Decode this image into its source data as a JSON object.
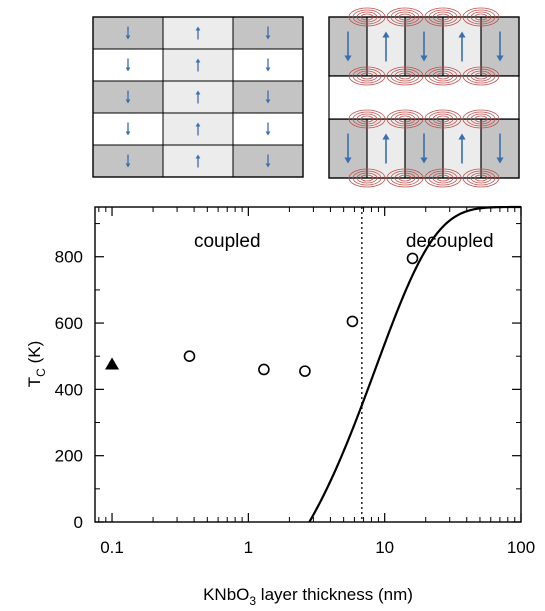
{
  "colors": {
    "dark_domain": "#c4c4c4",
    "light_domain": "#ececec",
    "white_domain": "#ffffff",
    "arrow": "#3a6fae",
    "loop": "#c0504d",
    "frame": "#000000"
  },
  "schematics": {
    "left": {
      "name": "coupled-domains-schematic",
      "rows": 5,
      "cols": 3,
      "row_shading": [
        "dark",
        "white",
        "dark",
        "white",
        "dark"
      ],
      "column_polarization": [
        "down",
        "up",
        "down"
      ]
    },
    "right": {
      "name": "decoupled-domains-schematic",
      "columns": 5,
      "column_polarization": [
        "down",
        "up",
        "down",
        "up",
        "down"
      ],
      "flux_loop_icon": "flux-closure-loop-icon"
    }
  },
  "chart_data": {
    "type": "scatter",
    "xscale": "log",
    "xlim": [
      0.075,
      100
    ],
    "ylim": [
      0,
      950
    ],
    "xticks": [
      0.1,
      1,
      10,
      100
    ],
    "xtick_labels": [
      "0.1",
      "1",
      "10",
      "100"
    ],
    "yticks": [
      0,
      200,
      400,
      600,
      800
    ],
    "ytick_labels": [
      "0",
      "200",
      "400",
      "600",
      "800"
    ],
    "xlabel_main": "KNbO",
    "xlabel_sub": "3",
    "xlabel_rest": " layer thickness (nm)",
    "ylabel_main": "T",
    "ylabel_sub": "C",
    "ylabel_rest": " (K)",
    "grid": false,
    "regions": [
      {
        "label": "coupled",
        "x": 0.7
      },
      {
        "label": "decoupled",
        "x": 30
      }
    ],
    "boundary_x": 6.8,
    "series": [
      {
        "marker": "circle-open",
        "x": [
          0.37,
          1.3,
          2.6,
          5.8,
          16
        ],
        "y": [
          500,
          460,
          455,
          605,
          795
        ]
      },
      {
        "marker": "triangle-filled",
        "x": [
          0.1
        ],
        "y": [
          475
        ]
      }
    ],
    "fit_curve": {
      "model": "saturating",
      "t_inf": 950,
      "x0": 2.8,
      "lambda": 19,
      "x_range": [
        2.8,
        100
      ]
    }
  }
}
